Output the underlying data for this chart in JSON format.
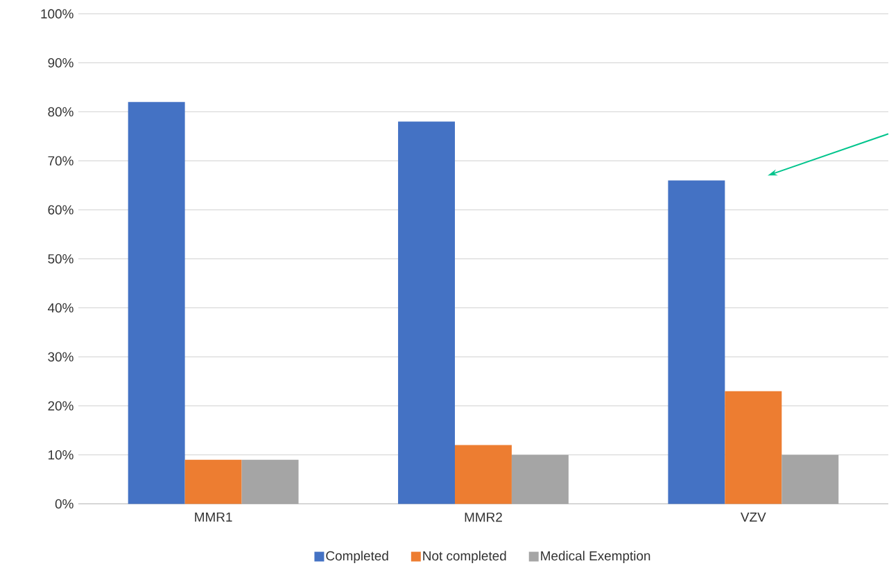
{
  "chart_data": {
    "type": "bar",
    "categories": [
      "MMR1",
      "MMR2",
      "VZV"
    ],
    "series": [
      {
        "name": "Completed",
        "color": "#4472c4",
        "values": [
          82,
          78,
          66
        ]
      },
      {
        "name": "Not completed",
        "color": "#ed7d31",
        "values": [
          9,
          12,
          23
        ]
      },
      {
        "name": "Medical Exemption",
        "color": "#a5a5a5",
        "values": [
          9,
          10,
          10
        ]
      }
    ],
    "ylim": [
      0,
      100
    ],
    "yticks": [
      {
        "value": 0,
        "label": "0%"
      },
      {
        "value": 10,
        "label": "10%"
      },
      {
        "value": 20,
        "label": "20%"
      },
      {
        "value": 30,
        "label": "30%"
      },
      {
        "value": 40,
        "label": "40%"
      },
      {
        "value": 50,
        "label": "50%"
      },
      {
        "value": 60,
        "label": "60%"
      },
      {
        "value": 70,
        "label": "70%"
      },
      {
        "value": 80,
        "label": "80%"
      },
      {
        "value": 90,
        "label": "90%"
      },
      {
        "value": 100,
        "label": "100%"
      }
    ],
    "grid": "y",
    "legend": "bottom"
  }
}
